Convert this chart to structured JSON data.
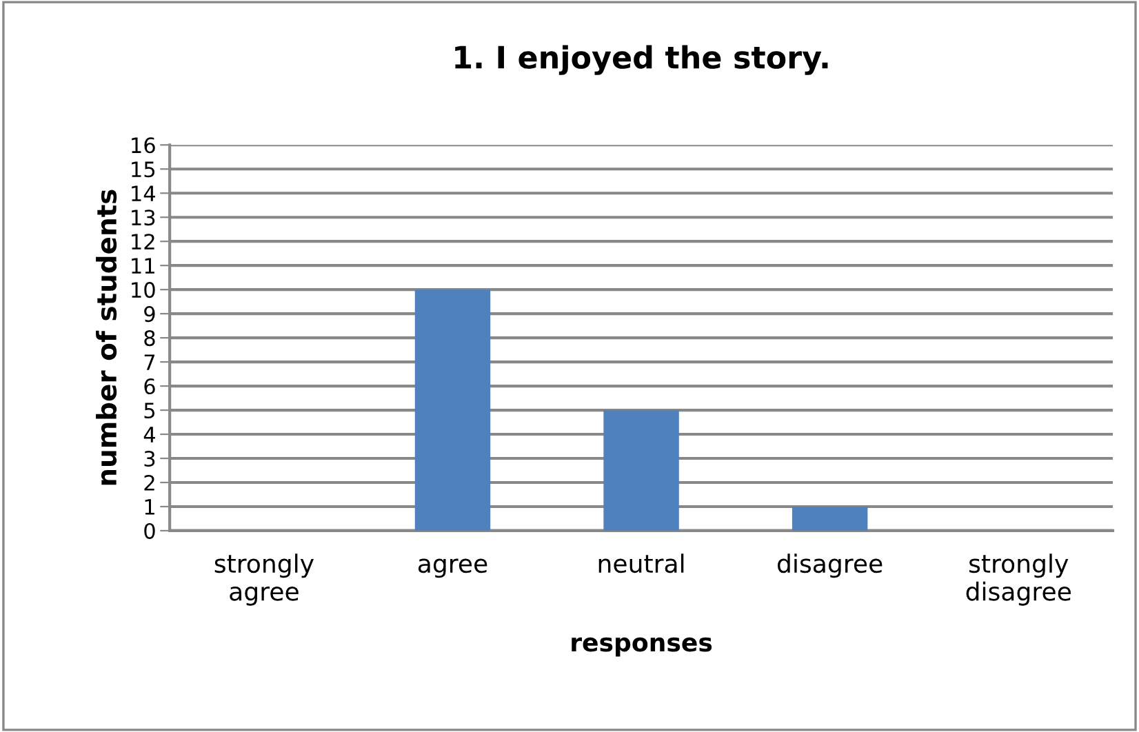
{
  "chart_data": {
    "type": "bar",
    "title": "1. I enjoyed the story.",
    "xlabel": "responses",
    "ylabel": "number of students",
    "categories": [
      "strongly\nagree",
      "agree",
      "neutral",
      "disagree",
      "strongly\ndisagree"
    ],
    "values": [
      0,
      10,
      5,
      1,
      0
    ],
    "color": "#4f81bd",
    "ylim": [
      0,
      16
    ],
    "yticks": [
      0,
      1,
      2,
      3,
      4,
      5,
      6,
      7,
      8,
      9,
      10,
      11,
      12,
      13,
      14,
      15,
      16
    ],
    "grid": "y",
    "legend": false
  }
}
